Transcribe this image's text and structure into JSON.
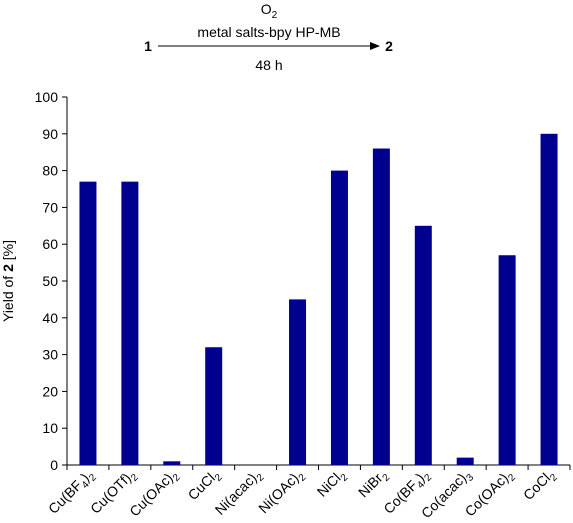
{
  "scheme": {
    "reactant": "1",
    "product": "2",
    "above_arrow_line1_main": "O",
    "above_arrow_line1_sub": "2",
    "above_arrow_line2": "metal salts-bpy HP-MB",
    "below_arrow": "48 h"
  },
  "chart_data": {
    "type": "bar",
    "categories": [
      {
        "main": "Cu(BF",
        "sub": "4",
        "close": ")",
        "sub2": "2"
      },
      {
        "main": "Cu(OTf)",
        "sub": "2"
      },
      {
        "main": "Cu(OAc)",
        "sub": "2"
      },
      {
        "main": "CuCl",
        "sub": "2"
      },
      {
        "main": "Ni(acac)",
        "sub": "2"
      },
      {
        "main": "Ni(OAc)",
        "sub": "2"
      },
      {
        "main": "NiCl",
        "sub": "2"
      },
      {
        "main": "NiBr",
        "sub": "2"
      },
      {
        "main": "Co(BF",
        "sub": "4",
        "close": ")",
        "sub2": "2"
      },
      {
        "main": "Co(acac)",
        "sub": "3"
      },
      {
        "main": "Co(OAc)",
        "sub": "2"
      },
      {
        "main": "CoCl",
        "sub": "2"
      }
    ],
    "values": [
      77,
      77,
      1,
      32,
      0,
      45,
      80,
      86,
      65,
      2,
      57,
      90
    ],
    "ylabel_prefix": "Yield of ",
    "ylabel_bold": "2",
    "ylabel_suffix": " [%]",
    "ylim": [
      0,
      100
    ],
    "yticks": [
      "0",
      "10",
      "20",
      "30",
      "40",
      "50",
      "60",
      "70",
      "80",
      "90",
      "100"
    ],
    "bar_color": "#000090",
    "grid": false
  }
}
